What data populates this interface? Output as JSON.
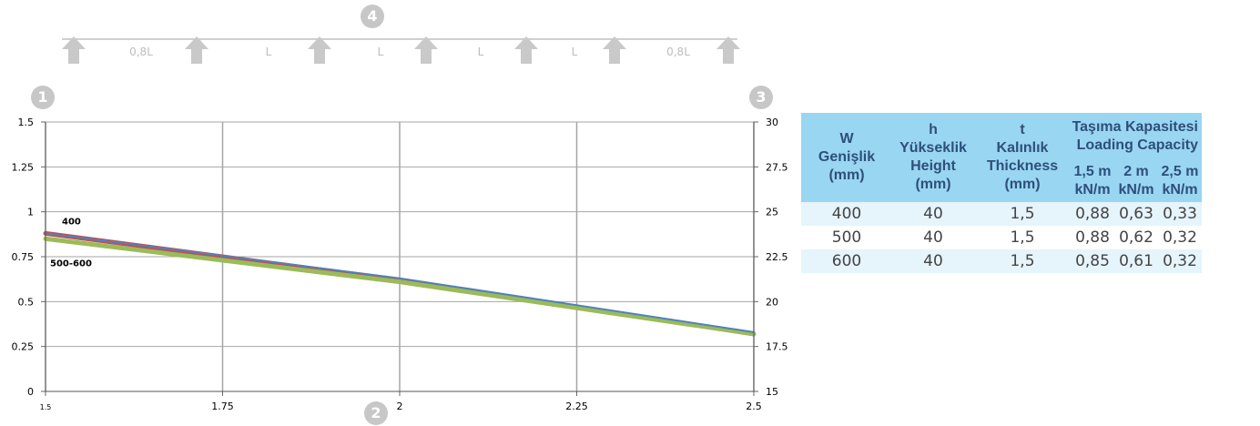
{
  "badges": {
    "top": "4",
    "left": "1",
    "bottom": "2",
    "right": "3"
  },
  "span_labels": [
    "0,8L",
    "L",
    "L",
    "L",
    "L",
    "0,8L"
  ],
  "chart_data": {
    "type": "line",
    "x": [
      1.5,
      2.5
    ],
    "x_ticks": [
      "1.5",
      "1.75",
      "2",
      "2.25",
      "2.5"
    ],
    "xlim": [
      1.5,
      2.5
    ],
    "y_ticks": [
      "0",
      "0.25",
      "0.5",
      "0.75",
      "1",
      "1.25",
      "1.5"
    ],
    "ylim": [
      0,
      1.5
    ],
    "y2_ticks": [
      "15",
      "17.5",
      "20",
      "22.5",
      "25",
      "27.5",
      "30"
    ],
    "y2lim": [
      15,
      30
    ],
    "grid": "on",
    "series": [
      {
        "name": "400",
        "points": [
          [
            1.5,
            0.88
          ],
          [
            2.0,
            0.63
          ],
          [
            2.5,
            0.33
          ]
        ],
        "color": "#4f81bd",
        "width": 2
      },
      {
        "name": "",
        "points": [
          [
            1.5,
            0.88
          ],
          [
            2.0,
            0.62
          ],
          [
            2.5,
            0.32
          ]
        ],
        "color": "#c0504d",
        "width": 5
      },
      {
        "name": "500-600",
        "points": [
          [
            1.5,
            0.85
          ],
          [
            2.0,
            0.61
          ],
          [
            2.5,
            0.32
          ]
        ],
        "color": "#9bbb59",
        "width": 5
      }
    ],
    "series_labels": [
      "400",
      "500-600"
    ]
  },
  "table": {
    "headers": {
      "w": [
        "W",
        "Genişlik",
        "(mm)"
      ],
      "h": [
        "h",
        "Yükseklik",
        "Height",
        "(mm)"
      ],
      "t": [
        "t",
        "Kalınlık",
        "Thickness",
        "(mm)"
      ],
      "capacity": [
        "Taşıma Kapasitesi",
        "Loading Capacity"
      ],
      "spans": [
        {
          "top": "1,5 m",
          "bottom": "kN/m"
        },
        {
          "top": "2 m",
          "bottom": "kN/m"
        },
        {
          "top": "2,5 m",
          "bottom": "kN/m"
        }
      ]
    },
    "rows": [
      [
        "400",
        "40",
        "1,5",
        "0,88",
        "0,63",
        "0,33"
      ],
      [
        "500",
        "40",
        "1,5",
        "0,88",
        "0,62",
        "0,32"
      ],
      [
        "600",
        "40",
        "1,5",
        "0,85",
        "0,61",
        "0,32"
      ]
    ],
    "header_color": "#99d6f2",
    "header_text_color": "#2f4f7a",
    "row_alt_color": "#e6f4fb"
  }
}
